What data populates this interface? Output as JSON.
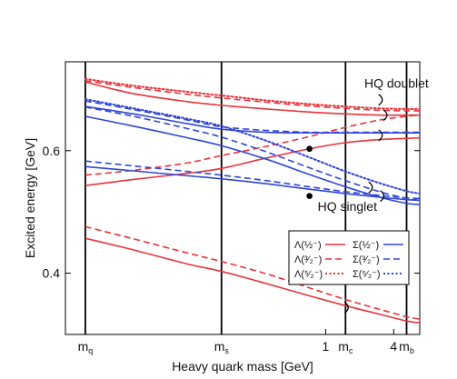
{
  "chart_data": {
    "type": "line",
    "xlabel": "Heavy quark mass [GeV]",
    "ylabel": "Excited energy [GeV]",
    "xscale": "log",
    "xlim": [
      0.005,
      6.8
    ],
    "ylim": [
      0.3,
      0.745
    ],
    "xticks": [
      {
        "x": 0.0075,
        "label": "m",
        "sub": "q"
      },
      {
        "x": 0.12,
        "label": "m",
        "sub": "s"
      },
      {
        "x": 1,
        "label": "1"
      },
      {
        "x": 1.5,
        "label": "m",
        "sub": "c"
      },
      {
        "x": 4,
        "label": "4"
      },
      {
        "x": 5.2,
        "label": "m",
        "sub": "b"
      }
    ],
    "yticks": [
      0.4,
      0.6
    ],
    "ytick_labels": [
      "0.4",
      "0.6"
    ],
    "vlines_at": [
      0.0075,
      0.12,
      1.5,
      5.2
    ],
    "annotations": [
      {
        "text": "HQ doublet",
        "x": 2.2,
        "y": 0.703
      },
      {
        "text": "HQ singlet",
        "x": 0.85,
        "y": 0.502
      }
    ],
    "points": [
      {
        "x": 0.72,
        "y": 0.603
      },
      {
        "x": 0.72,
        "y": 0.526
      }
    ],
    "markers": [
      {
        "x": 3.0,
        "y": 0.683
      },
      {
        "x": 3.3,
        "y": 0.658
      },
      {
        "x": 3.0,
        "y": 0.625
      },
      {
        "x": 2.45,
        "y": 0.54
      },
      {
        "x": 3.1,
        "y": 0.526
      },
      {
        "x": 1.5,
        "y": 0.344
      }
    ],
    "legend": {
      "placement": "lower-right",
      "entries": [
        {
          "label": "Λ(½⁻)",
          "color": "#e8333a",
          "dash": "solid"
        },
        {
          "label": "Σ(½⁻)",
          "color": "#2f45d6",
          "dash": "solid"
        },
        {
          "label": "Λ(³⁄₂⁻)",
          "color": "#e8333a",
          "dash": "dashed"
        },
        {
          "label": "Σ(³⁄₂⁻)",
          "color": "#2f45d6",
          "dash": "dashed"
        },
        {
          "label": "Λ(⁵⁄₂⁻)",
          "color": "#e8333a",
          "dash": "dotted"
        },
        {
          "label": "Σ(⁵⁄₂⁻)",
          "color": "#2f45d6",
          "dash": "dotted"
        }
      ]
    },
    "x": [
      0.0075,
      0.02,
      0.06,
      0.12,
      0.3,
      0.72,
      1.5,
      3.0,
      5.2,
      6.8
    ],
    "series": [
      {
        "name": "Λ(½⁻)",
        "color": "#e8333a",
        "dash": "solid",
        "values": [
          0.457,
          0.438,
          0.415,
          0.403,
          0.383,
          0.363,
          0.347,
          0.333,
          0.322,
          0.319
        ]
      },
      {
        "name": "Λ(½⁻)",
        "color": "#e8333a",
        "dash": "solid",
        "values": [
          0.543,
          0.553,
          0.563,
          0.571,
          0.588,
          0.603,
          0.613,
          0.618,
          0.62,
          0.621
        ]
      },
      {
        "name": "Λ(½⁻)",
        "color": "#e8333a",
        "dash": "solid",
        "values": [
          0.712,
          0.693,
          0.68,
          0.674,
          0.668,
          0.663,
          0.66,
          0.658,
          0.658,
          0.658
        ]
      },
      {
        "name": "Λ(³⁄₂⁻)",
        "color": "#e8333a",
        "dash": "dashed",
        "values": [
          0.476,
          0.456,
          0.433,
          0.419,
          0.399,
          0.376,
          0.357,
          0.341,
          0.329,
          0.325
        ]
      },
      {
        "name": "Λ(³⁄₂⁻)",
        "color": "#e8333a",
        "dash": "dashed",
        "values": [
          0.56,
          0.568,
          0.58,
          0.592,
          0.607,
          0.623,
          0.638,
          0.65,
          0.656,
          0.658
        ]
      },
      {
        "name": "Λ(³⁄₂⁻)",
        "color": "#e8333a",
        "dash": "dashed",
        "values": [
          0.714,
          0.703,
          0.692,
          0.686,
          0.679,
          0.673,
          0.669,
          0.666,
          0.665,
          0.665
        ]
      },
      {
        "name": "Λ(⁵⁄₂⁻)",
        "color": "#e8333a",
        "dash": "dotted",
        "values": [
          0.717,
          0.706,
          0.696,
          0.69,
          0.682,
          0.676,
          0.672,
          0.669,
          0.668,
          0.668
        ]
      },
      {
        "name": "Σ(½⁻)",
        "color": "#2f45d6",
        "dash": "solid",
        "values": [
          0.656,
          0.64,
          0.621,
          0.608,
          0.586,
          0.561,
          0.541,
          0.524,
          0.514,
          0.512
        ]
      },
      {
        "name": "Σ(½⁻)",
        "color": "#2f45d6",
        "dash": "solid",
        "values": [
          0.574,
          0.567,
          0.559,
          0.554,
          0.546,
          0.537,
          0.53,
          0.524,
          0.52,
          0.519
        ]
      },
      {
        "name": "Σ(½⁻)",
        "color": "#2f45d6",
        "dash": "solid",
        "values": [
          0.672,
          0.66,
          0.644,
          0.635,
          0.63,
          0.629,
          0.629,
          0.629,
          0.629,
          0.629
        ]
      },
      {
        "name": "Σ(³⁄₂⁻)",
        "color": "#2f45d6",
        "dash": "dashed",
        "values": [
          0.671,
          0.656,
          0.636,
          0.622,
          0.598,
          0.572,
          0.551,
          0.533,
          0.522,
          0.519
        ]
      },
      {
        "name": "Σ(³⁄₂⁻)",
        "color": "#2f45d6",
        "dash": "dashed",
        "values": [
          0.583,
          0.575,
          0.566,
          0.56,
          0.551,
          0.541,
          0.533,
          0.527,
          0.523,
          0.522
        ]
      },
      {
        "name": "Σ(³⁄₂⁻)",
        "color": "#2f45d6",
        "dash": "dashed",
        "values": [
          0.681,
          0.667,
          0.65,
          0.639,
          0.633,
          0.63,
          0.63,
          0.63,
          0.63,
          0.63
        ]
      },
      {
        "name": "Σ(⁵⁄₂⁻)",
        "color": "#2f45d6",
        "dash": "dotted",
        "values": [
          0.684,
          0.669,
          0.652,
          0.64,
          0.616,
          0.589,
          0.566,
          0.547,
          0.534,
          0.53
        ]
      }
    ]
  }
}
